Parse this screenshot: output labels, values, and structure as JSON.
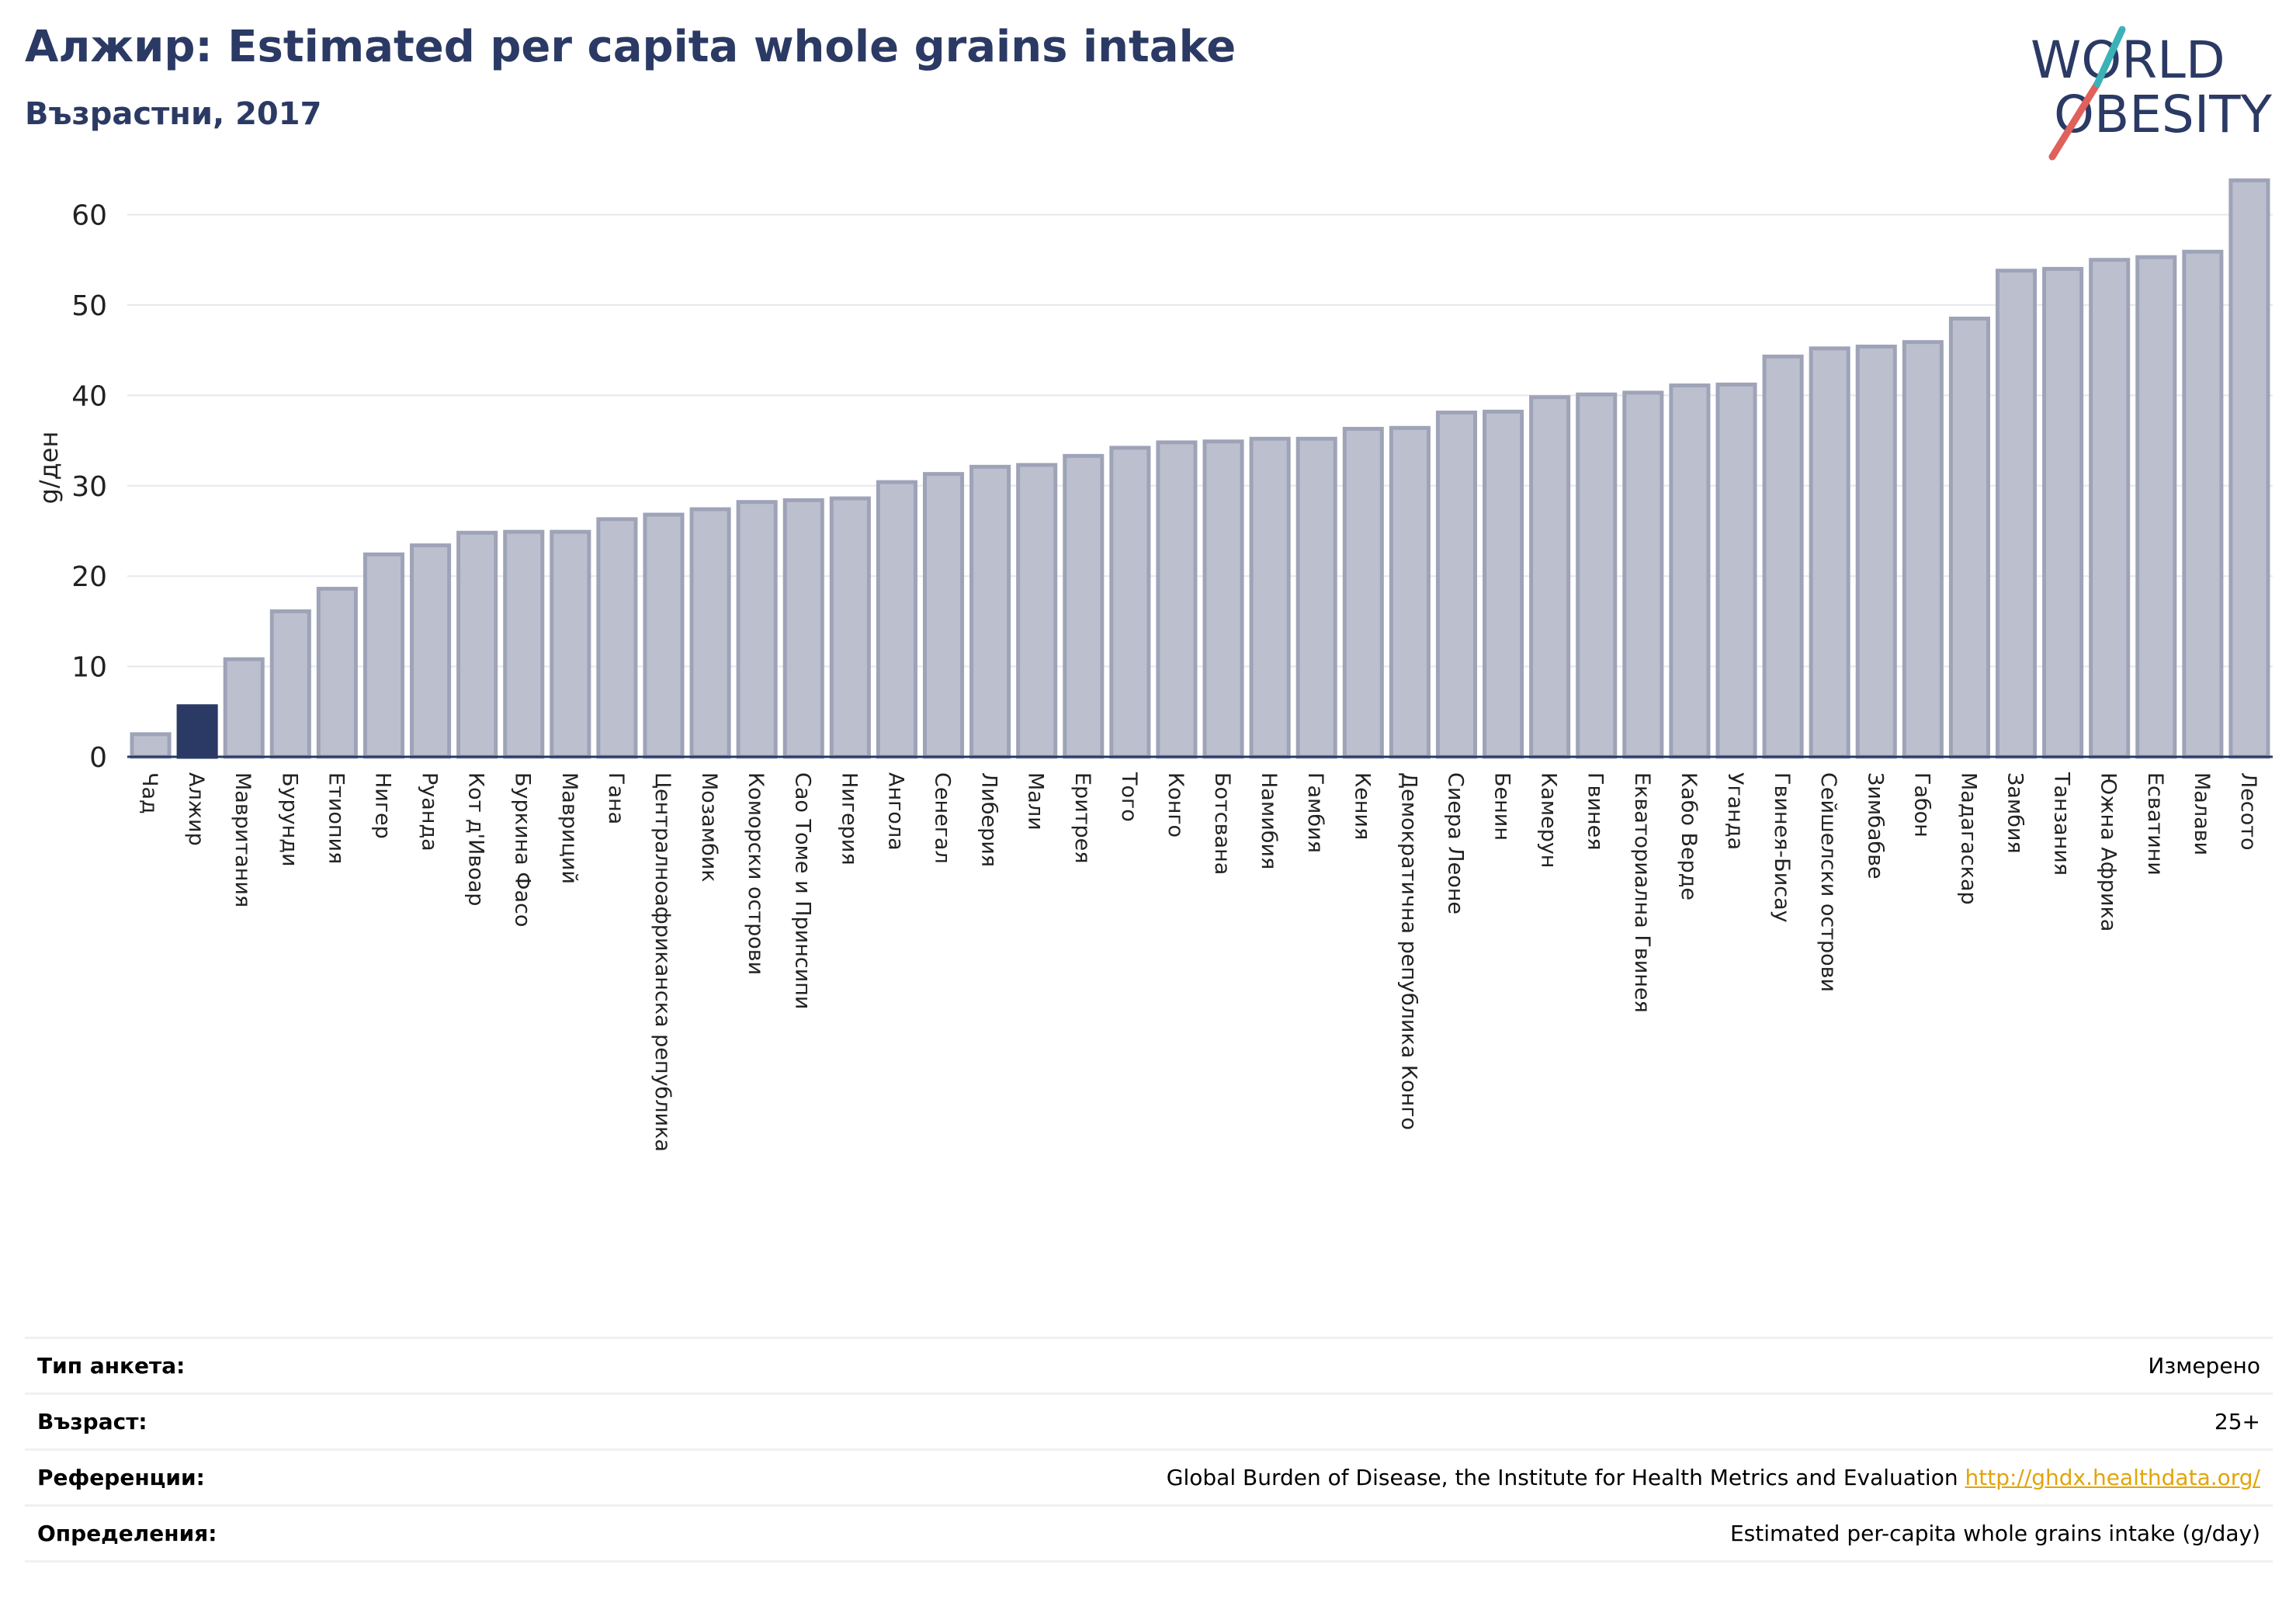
{
  "header": {
    "title": "Алжир: Estimated per capita whole grains intake",
    "subtitle": "Възрастни, 2017"
  },
  "logo": {
    "line1": "WORLD",
    "line2": "OBESITY"
  },
  "colors": {
    "highlight_bar": "#2b3a64",
    "bar_fill": "#bcc0ce",
    "bar_stroke": "#9ea3b8",
    "title": "#2b3a64",
    "logo_slash_red": "#e0605a",
    "logo_slash_teal": "#3bb2b8",
    "link": "#e2a40b"
  },
  "chart_data": {
    "type": "bar",
    "ylabel": "g/ден",
    "ylim": [
      0,
      64
    ],
    "yticks": [
      0,
      10,
      20,
      30,
      40,
      50,
      60
    ],
    "grid": true,
    "highlight": "Алжир",
    "categories": [
      "Чад",
      "Алжир",
      "Мавритания",
      "Бурунди",
      "Етиопия",
      "Нигер",
      "Руанда",
      "Кот д'Ивоар",
      "Буркина Фасо",
      "Мавриций",
      "Гана",
      "Централноафриканска република",
      "Мозамбик",
      "Коморски острови",
      "Сао Томе и Принсипи",
      "Нигерия",
      "Ангола",
      "Сенегал",
      "Либерия",
      "Мали",
      "Еритрея",
      "Того",
      "Конго",
      "Ботсвана",
      "Намибия",
      "Гамбия",
      "Кения",
      "Демократична република Конго",
      "Сиера Леоне",
      "Бенин",
      "Камерун",
      "Гвинея",
      "Екваториална Гвинея",
      "Кабо Верде",
      "Уганда",
      "Гвинея-Бисау",
      "Сейшелски острови",
      "Зимбабве",
      "Габон",
      "Мадагаскар",
      "Замбия",
      "Танзания",
      "Южна Африка",
      "Есватини",
      "Малави",
      "Лесото"
    ],
    "values": [
      2.5,
      5.6,
      10.8,
      16.1,
      18.6,
      22.4,
      23.4,
      24.8,
      24.9,
      24.9,
      26.3,
      26.8,
      27.4,
      28.2,
      28.4,
      28.6,
      30.4,
      31.3,
      32.1,
      32.3,
      33.3,
      34.2,
      34.8,
      34.9,
      35.2,
      35.2,
      36.3,
      36.4,
      38.1,
      38.2,
      39.8,
      40.1,
      40.3,
      41.1,
      41.2,
      44.3,
      45.2,
      45.4,
      45.9,
      48.5,
      53.8,
      54.0,
      55.0,
      55.3,
      55.9,
      63.8
    ]
  },
  "meta": [
    {
      "label": "Тип анкета:",
      "value": "Измерено"
    },
    {
      "label": "Възраст:",
      "value": "25+"
    },
    {
      "label": "Референции:",
      "value": "Global Burden of Disease, the Institute for Health Metrics and Evaluation",
      "link": "http://ghdx.healthdata.org/"
    },
    {
      "label": "Определения:",
      "value": "Estimated per-capita whole grains intake (g/day)"
    }
  ]
}
